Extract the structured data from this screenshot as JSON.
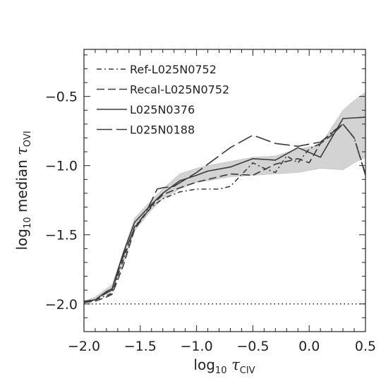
{
  "chart_data": {
    "type": "line",
    "xlabel": "log10 τCIV",
    "ylabel": "log10 median τOVI",
    "xlim": [
      -2.0,
      0.5
    ],
    "ylim": [
      -2.2,
      -0.16
    ],
    "xticks": [
      {
        "value": -2.0,
        "label": "−2.0"
      },
      {
        "value": -1.5,
        "label": "−1.5"
      },
      {
        "value": -1.0,
        "label": "−1.0"
      },
      {
        "value": -0.5,
        "label": "−0.5"
      },
      {
        "value": 0.0,
        "label": "0.0"
      },
      {
        "value": 0.5,
        "label": "0.5"
      }
    ],
    "yticks": [
      {
        "value": -2.0,
        "label": "−2.0"
      },
      {
        "value": -1.5,
        "label": "−1.5"
      },
      {
        "value": -1.0,
        "label": "−1.0"
      },
      {
        "value": -0.5,
        "label": "−0.5"
      }
    ],
    "grid": false,
    "legend_position": "top-left",
    "reference_line": {
      "y": -2.0,
      "style": "dotted"
    },
    "band": {
      "x": [
        -2.0,
        -1.9,
        -1.8,
        -1.75,
        -1.65,
        -1.55,
        -1.4,
        -1.3,
        -1.15,
        -1.0,
        -0.9,
        -0.7,
        -0.5,
        -0.3,
        -0.1,
        0.1,
        0.3,
        0.4,
        0.5
      ],
      "upper": [
        -1.98,
        -1.95,
        -1.89,
        -1.86,
        -1.62,
        -1.38,
        -1.25,
        -1.17,
        -1.06,
        -1.02,
        -1.0,
        -0.97,
        -0.94,
        -0.93,
        -0.88,
        -0.85,
        -0.6,
        -0.53,
        -0.47
      ],
      "lower": [
        -1.99,
        -1.97,
        -1.93,
        -1.9,
        -1.7,
        -1.47,
        -1.32,
        -1.24,
        -1.17,
        -1.12,
        -1.11,
        -1.08,
        -1.07,
        -1.06,
        -1.05,
        -1.02,
        -1.03,
        -0.98,
        -0.94
      ],
      "color": "#d3d3d3"
    },
    "series": [
      {
        "name": "Ref-L025N0752",
        "style": "dashdot",
        "x": [
          -2.0,
          -1.9,
          -1.8,
          -1.75,
          -1.65,
          -1.55,
          -1.4,
          -1.3,
          -1.15,
          -1.0,
          -0.9,
          -0.8,
          -0.7,
          -0.5,
          -0.4,
          -0.3,
          -0.2,
          -0.1,
          0.0,
          0.1,
          0.2,
          0.3,
          0.4,
          0.5
        ],
        "y": [
          -1.99,
          -1.97,
          -1.94,
          -1.92,
          -1.68,
          -1.44,
          -1.3,
          -1.24,
          -1.19,
          -1.17,
          -1.17,
          -1.17,
          -1.15,
          -0.98,
          -1.02,
          -1.05,
          -0.93,
          -0.98,
          -0.88,
          -0.84,
          -0.76,
          -0.7,
          -0.8,
          -1.06
        ]
      },
      {
        "name": "Recal-L025N0752",
        "style": "dashed",
        "x": [
          -2.0,
          -1.9,
          -1.8,
          -1.75,
          -1.65,
          -1.55,
          -1.4,
          -1.3,
          -1.15,
          -1.0,
          -0.9,
          -0.7,
          -0.5,
          -0.3,
          -0.1,
          0.0,
          0.1,
          0.2,
          0.3
        ],
        "y": [
          -1.99,
          -1.98,
          -1.95,
          -1.93,
          -1.72,
          -1.46,
          -1.29,
          -1.21,
          -1.16,
          -1.12,
          -1.1,
          -1.06,
          -1.07,
          -0.99,
          -0.95,
          -0.98,
          -0.84,
          -0.78,
          -0.7
        ]
      },
      {
        "name": "L025N0376",
        "style": "solid",
        "x": [
          -2.0,
          -1.9,
          -1.8,
          -1.75,
          -1.65,
          -1.55,
          -1.4,
          -1.3,
          -1.15,
          -1.0,
          -0.9,
          -0.7,
          -0.5,
          -0.3,
          -0.1,
          0.1,
          0.3,
          0.5
        ],
        "y": [
          -1.98,
          -1.97,
          -1.91,
          -1.89,
          -1.63,
          -1.41,
          -1.28,
          -1.2,
          -1.11,
          -1.07,
          -1.04,
          -1.01,
          -0.95,
          -0.96,
          -0.87,
          -0.94,
          -0.66,
          -0.65
        ]
      },
      {
        "name": "L025N0188",
        "style": "longdash",
        "x": [
          -2.0,
          -1.9,
          -1.8,
          -1.75,
          -1.65,
          -1.55,
          -1.45,
          -1.35,
          -1.3,
          -1.2,
          -1.1,
          -1.0,
          -0.9,
          -0.7,
          -0.5,
          -0.3,
          -0.1,
          0.1,
          0.3,
          0.4,
          0.5
        ],
        "y": [
          -1.99,
          -1.97,
          -1.92,
          -1.9,
          -1.65,
          -1.45,
          -1.34,
          -1.17,
          -1.16,
          -1.15,
          -1.1,
          -1.05,
          -0.99,
          -0.87,
          -0.78,
          -0.84,
          -0.86,
          -0.83,
          -0.7,
          -0.8,
          -1.07
        ]
      }
    ]
  }
}
